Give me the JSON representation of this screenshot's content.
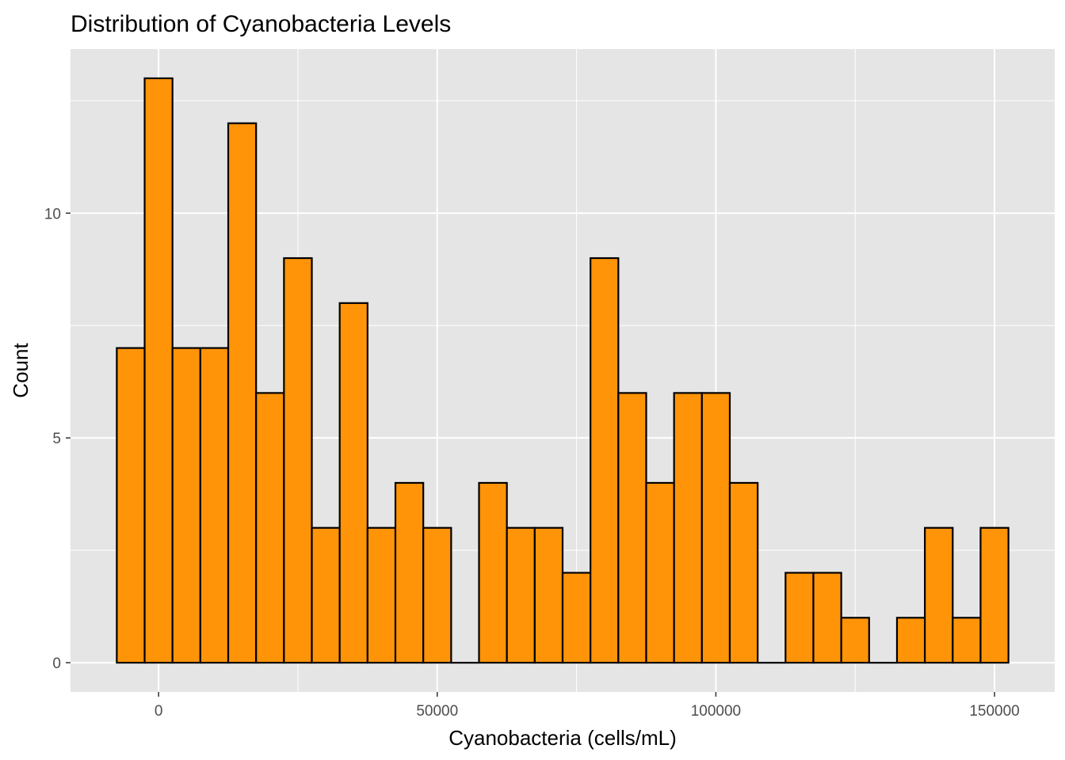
{
  "chart_data": {
    "type": "bar",
    "title": "Distribution of Cyanobacteria Levels",
    "xlabel": "Cyanobacteria (cells/mL)",
    "ylabel": "Count",
    "bin_width": 5000,
    "bin_centers": [
      -5000,
      0,
      5000,
      10000,
      15000,
      20000,
      25000,
      30000,
      35000,
      40000,
      45000,
      50000,
      55000,
      60000,
      65000,
      70000,
      75000,
      80000,
      85000,
      90000,
      95000,
      100000,
      105000,
      110000,
      115000,
      120000,
      125000,
      130000,
      135000,
      140000,
      145000,
      150000
    ],
    "values": [
      7,
      13,
      7,
      7,
      12,
      6,
      9,
      3,
      8,
      3,
      4,
      3,
      0,
      4,
      3,
      3,
      2,
      9,
      6,
      4,
      6,
      6,
      4,
      0,
      2,
      2,
      1,
      0,
      1,
      3,
      1,
      3
    ],
    "xlim": [
      -15800,
      160800
    ],
    "ylim": [
      -0.65,
      13.65
    ],
    "x_ticks": [
      0,
      50000,
      100000,
      150000
    ],
    "x_tick_labels": [
      "0",
      "50000",
      "100000",
      "150000"
    ],
    "y_ticks": [
      0,
      5,
      10
    ],
    "y_tick_labels": [
      "0",
      "5",
      "10"
    ],
    "grid": true,
    "legend": "none",
    "colors": {
      "bar_fill": "#ff9408",
      "bar_outline": "#000000",
      "panel_background": "#e5e5e5",
      "grid": "#ffffff"
    }
  }
}
